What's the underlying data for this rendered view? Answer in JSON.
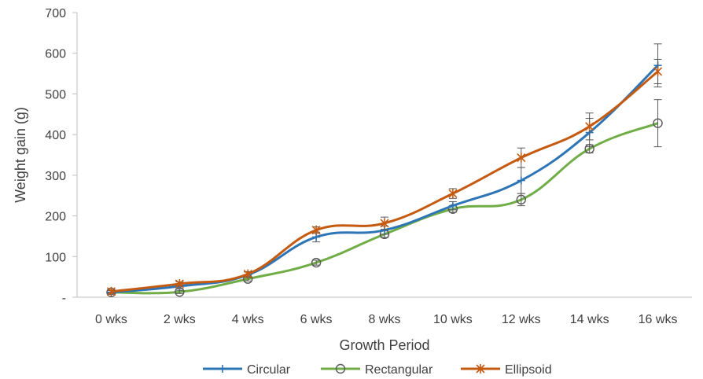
{
  "chart_data": {
    "type": "line",
    "title": "",
    "xlabel": "Growth Period",
    "ylabel": "Weight gain (g)",
    "categories": [
      "0 wks",
      "2 wks",
      "4 wks",
      "6 wks",
      "8 wks",
      "10 wks",
      "12 wks",
      "14 wks",
      "16 wks"
    ],
    "ylim": [
      0,
      700
    ],
    "yticks": [
      0,
      100,
      200,
      300,
      400,
      500,
      600,
      700
    ],
    "ytick_labels": [
      "-",
      "100",
      "200",
      "300",
      "400",
      "500",
      "600",
      "700"
    ],
    "grid": false,
    "legend_position": "bottom",
    "series": [
      {
        "name": "Circular",
        "color": "#2e75b6",
        "marker": "plus",
        "values": [
          12,
          27,
          55,
          148,
          165,
          225,
          287,
          405,
          570
        ],
        "errors": [
          5,
          6,
          7,
          12,
          10,
          10,
          32,
          35,
          53
        ]
      },
      {
        "name": "Rectangular",
        "color": "#70ad47",
        "marker": "circle",
        "values": [
          12,
          13,
          45,
          85,
          155,
          217,
          240,
          365,
          428
        ],
        "errors": [
          4,
          4,
          5,
          6,
          8,
          8,
          15,
          10,
          58
        ]
      },
      {
        "name": "Ellipsoid",
        "color": "#c55a11",
        "marker": "star",
        "values": [
          14,
          33,
          57,
          165,
          182,
          255,
          343,
          420,
          555
        ],
        "errors": [
          4,
          5,
          6,
          8,
          15,
          12,
          24,
          33,
          30
        ]
      }
    ]
  }
}
